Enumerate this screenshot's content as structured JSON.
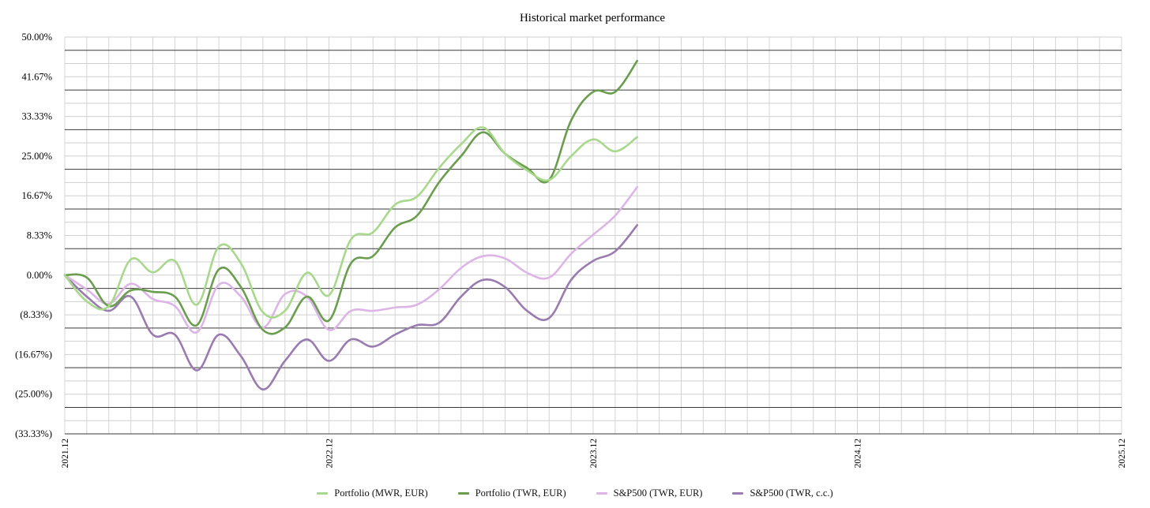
{
  "chart_data": {
    "type": "line",
    "title": "Historical market performance",
    "xlabel": "",
    "ylabel": "",
    "xlim": [
      "2021.12",
      "2025.12"
    ],
    "ylim": [
      -33.33,
      50.0
    ],
    "y_ticks": [
      "50.00%",
      "41.67%",
      "33.33%",
      "25.00%",
      "16.67%",
      "8.33%",
      "0.00%",
      "(8.33%)",
      "(16.67%)",
      "(25.00%)",
      "(33.33%)"
    ],
    "y_tick_values": [
      50.0,
      41.67,
      33.33,
      25.0,
      16.67,
      8.33,
      0.0,
      -8.33,
      -16.67,
      -25.0,
      -33.33
    ],
    "x_ticks": [
      "2021.12",
      "2022.12",
      "2023.12",
      "2024.12",
      "2025.12"
    ],
    "x_months_per_step": 1,
    "grid": true,
    "legend_position": "bottom",
    "series": [
      {
        "name": "Portfolio (MWR, EUR)",
        "color": "#a8d88c",
        "values": [
          0,
          -5.5,
          -6.5,
          3.3,
          0.6,
          3.0,
          -6.2,
          6.0,
          2.5,
          -7.8,
          -7.5,
          0.5,
          -4.2,
          7.5,
          9.0,
          14.8,
          16.5,
          22.5,
          27.5,
          31.0,
          25.5,
          22.0,
          20.0,
          25.0,
          28.5,
          26.0,
          29.0
        ]
      },
      {
        "name": "Portfolio (TWR, EUR)",
        "color": "#6a9e4e",
        "values": [
          0,
          -0.5,
          -6.5,
          -3.2,
          -3.5,
          -4.5,
          -10.5,
          1.2,
          -2.5,
          -11.5,
          -11.0,
          -4.5,
          -9.5,
          2.5,
          4.0,
          10.0,
          12.5,
          19.5,
          25.0,
          30.0,
          25.5,
          22.5,
          20.0,
          32.5,
          38.5,
          38.5,
          45.0
        ]
      },
      {
        "name": "S&P500 (TWR, EUR)",
        "color": "#dcb5e6",
        "values": [
          0,
          -3.0,
          -6.0,
          -1.8,
          -5.0,
          -6.5,
          -12.0,
          -2.0,
          -4.5,
          -11.0,
          -4.0,
          -4.5,
          -11.5,
          -7.5,
          -7.5,
          -6.8,
          -6.2,
          -3.0,
          1.5,
          4.0,
          3.5,
          0.5,
          -0.5,
          4.5,
          8.5,
          12.5,
          18.5
        ]
      },
      {
        "name": "S&P500 (TWR, c.c.)",
        "color": "#9a7bb0",
        "values": [
          0,
          -4.5,
          -7.5,
          -4.5,
          -12.5,
          -12.5,
          -20.0,
          -12.5,
          -17.0,
          -24.0,
          -18.0,
          -13.5,
          -18.0,
          -13.5,
          -15.0,
          -12.5,
          -10.5,
          -10.0,
          -4.5,
          -1.0,
          -2.5,
          -7.5,
          -9.0,
          -1.0,
          3.0,
          5.0,
          10.5
        ]
      }
    ]
  }
}
